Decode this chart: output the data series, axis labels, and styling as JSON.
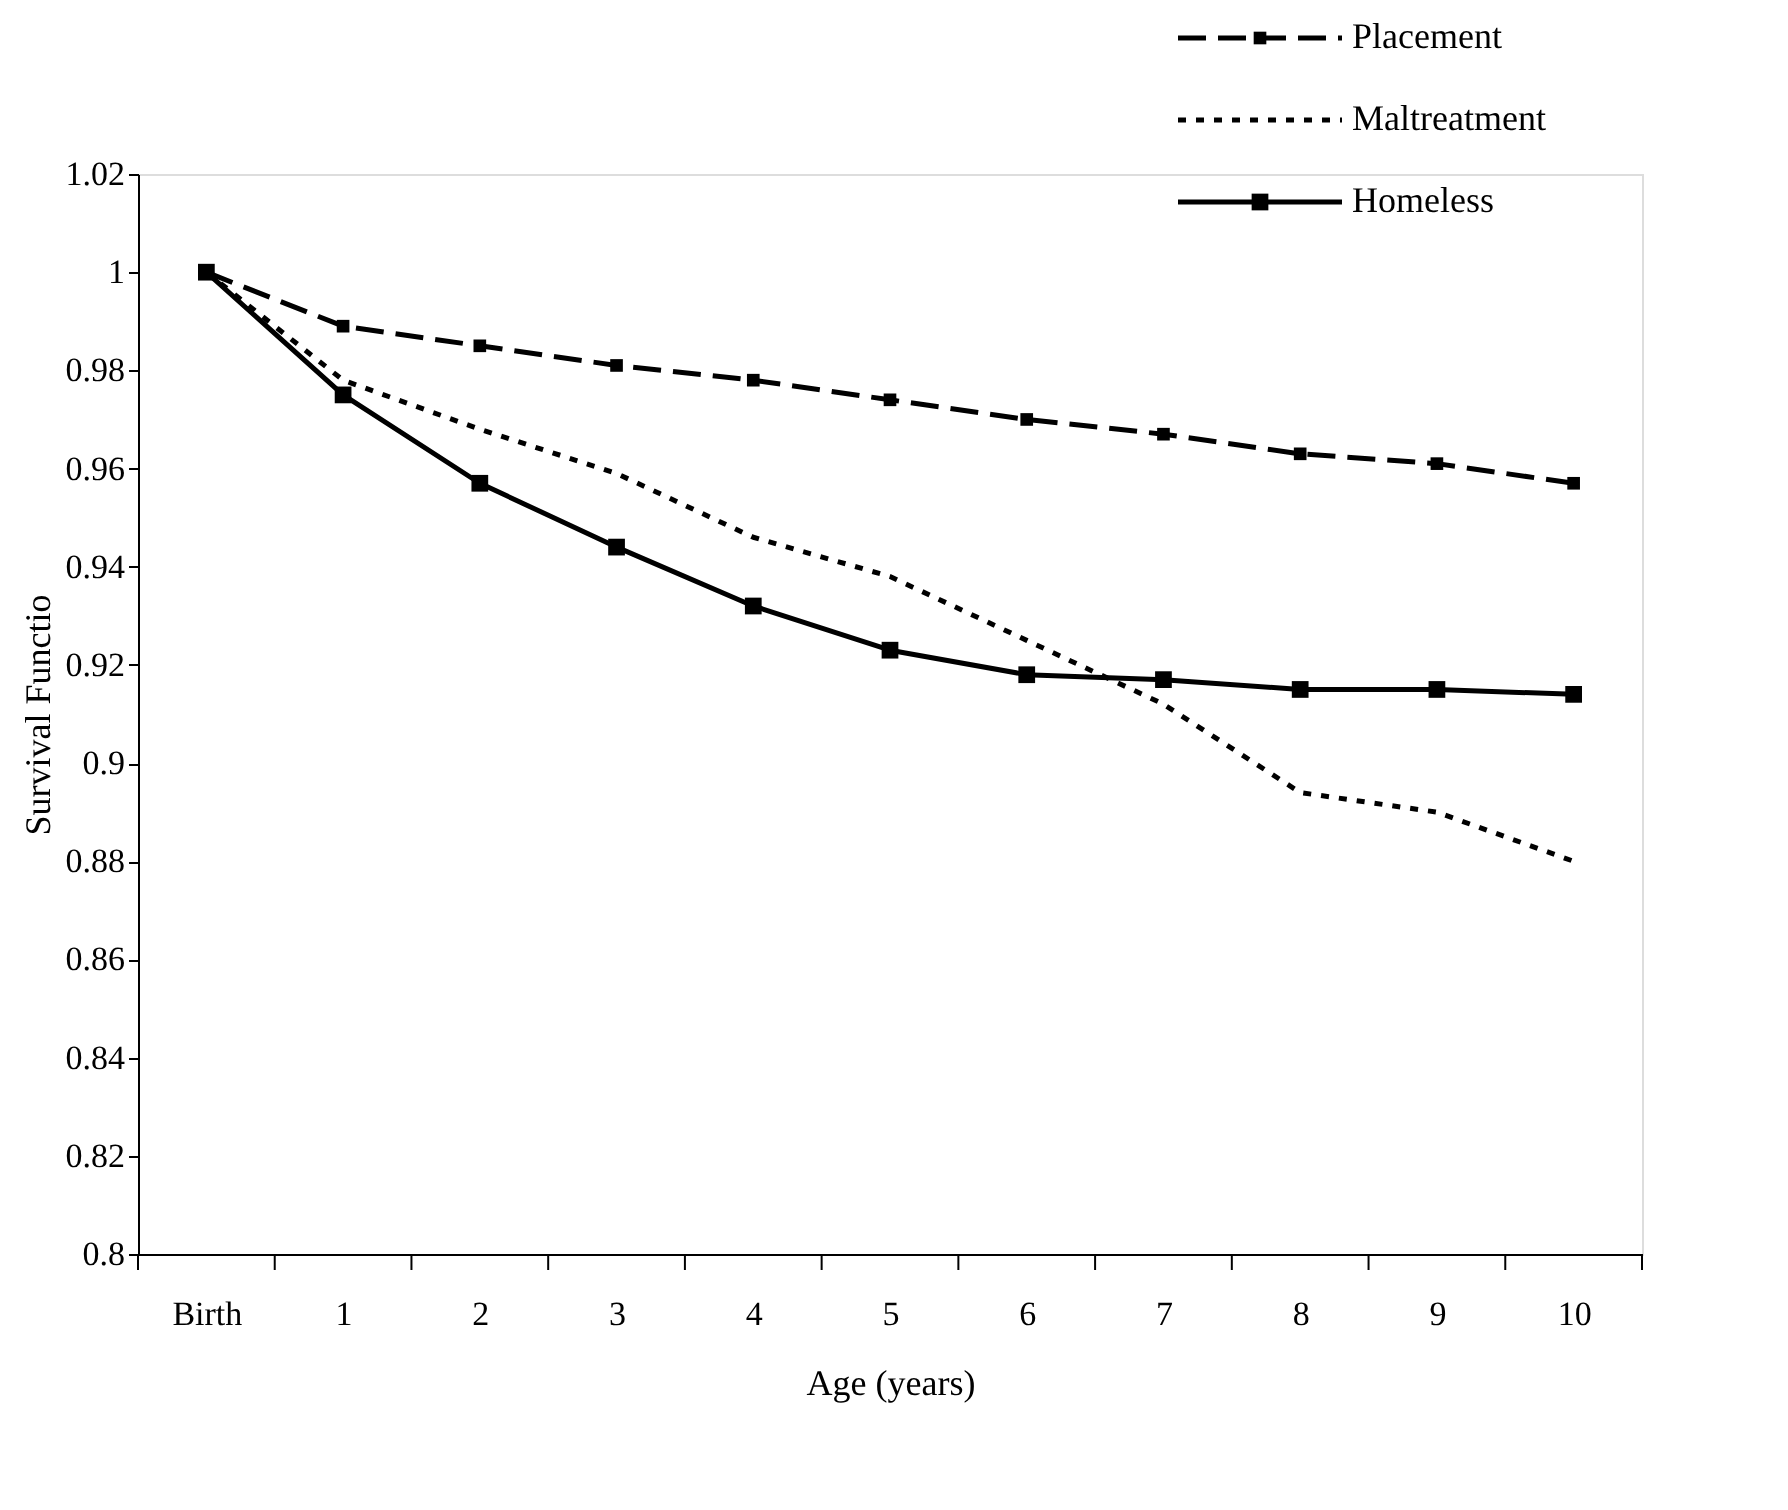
{
  "chart_data": {
    "type": "line",
    "xlabel": "Age (years)",
    "ylabel": "Survival Functio",
    "categories": [
      "Birth",
      "1",
      "2",
      "3",
      "4",
      "5",
      "6",
      "7",
      "8",
      "9",
      "10"
    ],
    "series": [
      {
        "name": "Placement",
        "color": "#000000",
        "marker": "square",
        "line_style": "dashed",
        "values": [
          1.0,
          0.989,
          0.985,
          0.981,
          0.978,
          0.974,
          0.97,
          0.967,
          0.963,
          0.961,
          0.957
        ]
      },
      {
        "name": "Maltreatment",
        "color": "#000000",
        "marker": "none",
        "line_style": "dotted",
        "values": [
          1.0,
          0.978,
          0.968,
          0.959,
          0.946,
          0.938,
          0.925,
          0.912,
          0.894,
          0.89,
          0.88
        ]
      },
      {
        "name": "Homeless",
        "color": "#000000",
        "marker": "square",
        "line_style": "solid",
        "values": [
          1.0,
          0.975,
          0.957,
          0.944,
          0.932,
          0.923,
          0.918,
          0.917,
          0.915,
          0.915,
          0.914
        ]
      }
    ],
    "ylim": [
      0.8,
      1.02
    ],
    "yticks": [
      0.8,
      0.82,
      0.84,
      0.86,
      0.88,
      0.9,
      0.92,
      0.94,
      0.96,
      0.98,
      1,
      1.02
    ],
    "grid": false,
    "legend": "top right"
  }
}
